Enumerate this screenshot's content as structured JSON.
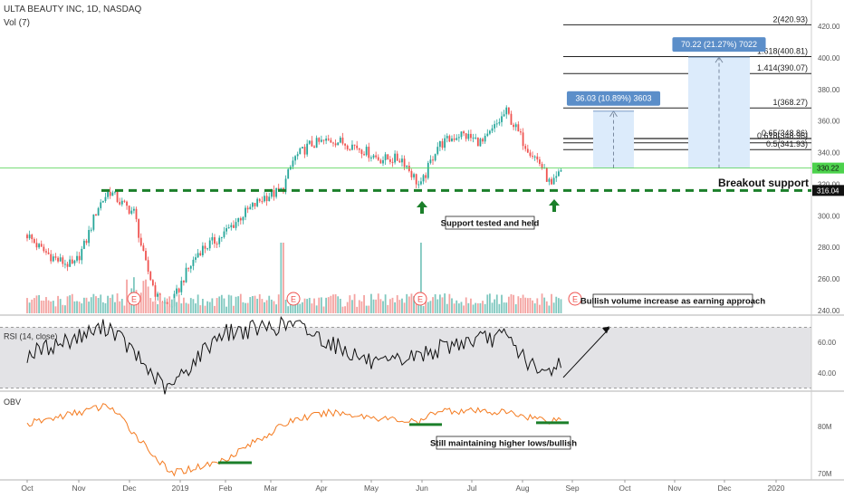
{
  "header": {
    "symbol_line": "ULTA BEAUTY INC, 1D, NASDAQ",
    "vol_label": "Vol (7)"
  },
  "colors": {
    "up": "#26a69a",
    "down": "#ef5350",
    "vol_up": "#7fc8bf",
    "vol_down": "#f4a3a1",
    "support": "#1b7f2a",
    "price_line": "#4cd24c",
    "rsi": "#111111",
    "obv": "#f47b20",
    "fib": "#222222",
    "measure_fill": "#dcebfb",
    "measure_label": "#5b8ec9"
  },
  "chart_data": [
    {
      "type": "candlestick",
      "title": "ULTA BEAUTY INC, 1D, NASDAQ",
      "x_ticks": [
        "Oct",
        "Nov",
        "Dec",
        "2019",
        "Feb",
        "Mar",
        "Apr",
        "May",
        "Jun",
        "Jul",
        "Aug",
        "Sep",
        "Oct",
        "Nov",
        "Dec",
        "2020"
      ],
      "y_ticks": [
        240,
        260,
        280,
        300,
        320,
        340,
        360,
        380,
        400,
        420
      ],
      "ylim": [
        238,
        438
      ],
      "key_points": [
        {
          "x": "2018-10-01",
          "y": 288
        },
        {
          "x": "2018-10-09",
          "y": 279
        },
        {
          "x": "2018-10-19",
          "y": 272
        },
        {
          "x": "2018-10-29",
          "y": 268
        },
        {
          "x": "2018-11-05",
          "y": 283
        },
        {
          "x": "2018-11-12",
          "y": 305
        },
        {
          "x": "2018-11-19",
          "y": 316
        },
        {
          "x": "2018-11-26",
          "y": 308
        },
        {
          "x": "2018-12-04",
          "y": 302
        },
        {
          "x": "2018-12-10",
          "y": 272
        },
        {
          "x": "2018-12-18",
          "y": 248
        },
        {
          "x": "2018-12-26",
          "y": 242
        },
        {
          "x": "2019-01-04",
          "y": 262
        },
        {
          "x": "2019-01-14",
          "y": 278
        },
        {
          "x": "2019-01-28",
          "y": 286
        },
        {
          "x": "2019-02-11",
          "y": 300
        },
        {
          "x": "2019-02-25",
          "y": 312
        },
        {
          "x": "2019-03-08",
          "y": 316
        },
        {
          "x": "2019-03-15",
          "y": 336
        },
        {
          "x": "2019-03-25",
          "y": 345
        },
        {
          "x": "2019-04-08",
          "y": 348
        },
        {
          "x": "2019-04-22",
          "y": 344
        },
        {
          "x": "2019-05-06",
          "y": 336
        },
        {
          "x": "2019-05-20",
          "y": 336
        },
        {
          "x": "2019-05-31",
          "y": 318
        },
        {
          "x": "2019-06-10",
          "y": 344
        },
        {
          "x": "2019-06-24",
          "y": 352
        },
        {
          "x": "2019-07-08",
          "y": 346
        },
        {
          "x": "2019-07-22",
          "y": 366
        },
        {
          "x": "2019-08-02",
          "y": 346
        },
        {
          "x": "2019-08-12",
          "y": 333
        },
        {
          "x": "2019-08-19",
          "y": 318
        },
        {
          "x": "2019-08-26",
          "y": 330
        }
      ],
      "last_price": 330.22,
      "support_level": 316.04,
      "annotations": [
        "Breakout support",
        "Support tested and held"
      ],
      "earnings_marker": "E"
    },
    {
      "type": "bar",
      "name": "Vol (7)",
      "note": "volume histogram",
      "spikes": [
        "2019-03-08",
        "2019-05-31"
      ],
      "annotation": "Bullish volume increase as earning approach"
    },
    {
      "type": "line",
      "name": "RSI (14, close)",
      "y_ticks": [
        40,
        60
      ],
      "ylim": [
        28,
        78
      ],
      "band": [
        30,
        70
      ],
      "key_points": [
        {
          "x": "2018-10-01",
          "y": 52
        },
        {
          "x": "2018-11-19",
          "y": 71
        },
        {
          "x": "2018-12-24",
          "y": 28
        },
        {
          "x": "2019-01-28",
          "y": 66
        },
        {
          "x": "2019-03-15",
          "y": 72
        },
        {
          "x": "2019-05-06",
          "y": 44
        },
        {
          "x": "2019-06-24",
          "y": 60
        },
        {
          "x": "2019-07-22",
          "y": 64
        },
        {
          "x": "2019-08-12",
          "y": 38
        },
        {
          "x": "2019-08-26",
          "y": 48
        }
      ]
    },
    {
      "type": "line",
      "name": "OBV",
      "y_ticks": [
        "80M",
        "70M"
      ],
      "key_points": [
        {
          "x": "2018-10-01",
          "y": 80.5
        },
        {
          "x": "2018-11-19",
          "y": 84.5
        },
        {
          "x": "2018-12-26",
          "y": 70
        },
        {
          "x": "2019-01-28",
          "y": 72.5
        },
        {
          "x": "2019-03-15",
          "y": 81.5
        },
        {
          "x": "2019-04-08",
          "y": 83
        },
        {
          "x": "2019-05-31",
          "y": 80.8
        },
        {
          "x": "2019-06-10",
          "y": 83.5
        },
        {
          "x": "2019-07-22",
          "y": 83
        },
        {
          "x": "2019-08-19",
          "y": 81.2
        },
        {
          "x": "2019-08-26",
          "y": 82
        }
      ],
      "annotation": "Still maintaining higher lows/bullish"
    }
  ],
  "fib_levels": [
    "2(420.93)",
    "1.618(400.81)",
    "1.414(390.07)",
    "1(368.27)",
    "0.5(341.93)"
  ],
  "fib_level_values": [
    420.93,
    400.81,
    390.07,
    368.27,
    341.93
  ],
  "fib_overlap": [
    "0.65(348.86)",
    "0.618(348.96)"
  ],
  "measure_labels": [
    "36.03 (10.89%) 3603",
    "70.22 (21.27%) 7022"
  ],
  "price_tags": {
    "last": "330.22",
    "support": "316.04"
  },
  "panel_labels": {
    "rsi": "RSI (14, close)",
    "obv": "OBV"
  }
}
